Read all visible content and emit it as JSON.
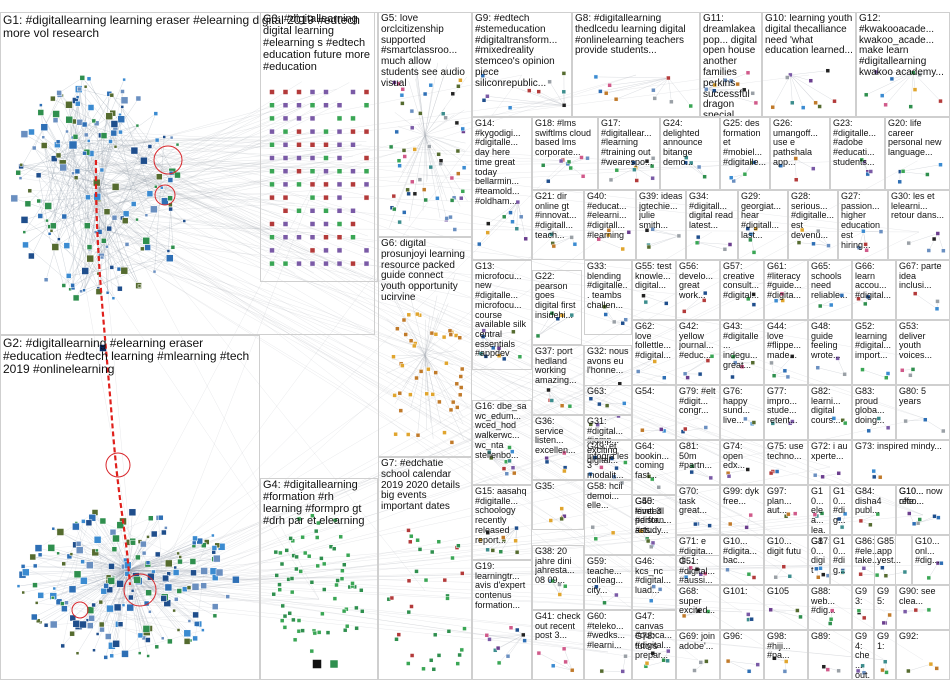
{
  "groups": [
    {
      "id": "G1",
      "label": "G1: #digitallearning learning eraser #elearning digital 2019 #edtech more vol research"
    },
    {
      "id": "G2",
      "label": "G2: #digitallearning #elearning eraser #education #edtech learning #mlearning #tech 2019 #onlinelearning"
    },
    {
      "id": "G3",
      "label": "G3: #digitallearning digital learning #elearning s #edtech education future more #education"
    },
    {
      "id": "G4",
      "label": "G4: #digitallearning #formation #rh learning #formpro gt #drh par et elearning"
    },
    {
      "id": "G5",
      "label": "G5: love orclcitizenship supported #smartclassroo... much allow students see audio visual"
    },
    {
      "id": "G6",
      "label": "G6: digital prosunjoyi learning resource packed guide connect youth opportunity ucirvine"
    },
    {
      "id": "G7",
      "label": "G7: #edchatie school calendar 2019 2020 details big events important dates"
    },
    {
      "id": "G8",
      "label": "G8: #digitallearning thedlcedu learning digital #onlinelearning teachers provide students..."
    },
    {
      "id": "G9",
      "label": "G9: #edtech #stemeducation #digitaltransform... #mixedreality stemceo's opinion piece siliconrepublic..."
    },
    {
      "id": "G10",
      "label": "G10: learning youth digital thecalliance need 'what education learned..."
    },
    {
      "id": "G11",
      "label": "G11: dreamlakeapop... digital open house another families perkins successful dragon special"
    },
    {
      "id": "G12",
      "label": "G12: #kwakooacade... kwakoo_acade... make learn #digitallearning kwakoo academy..."
    },
    {
      "id": "G13",
      "label": "G13: microfocu... new #digitalle... microfocu... course available silk central essentials #appdev"
    },
    {
      "id": "G14",
      "label": "G14: #kygodigi... #digitalle... day here time great today bellarmin... #teamold... #oldham..."
    },
    {
      "id": "G15",
      "label": "G15: aasahq #digitalle... schoology recently released report..."
    },
    {
      "id": "G16",
      "label": "G16: dbe_sa wc_edum... wced_hod walkerwc... wc_nta stellenbo..."
    },
    {
      "id": "G17",
      "label": "G17: #digitallear... #learning #training out #wearespo..."
    },
    {
      "id": "G18",
      "label": "G18: #lms swiftlms cloud based lms corporate..."
    },
    {
      "id": "G19",
      "label": "G19: learningtr... avis d'expert contenus formation..."
    },
    {
      "id": "G20",
      "label": "G20: life career personal new language..."
    },
    {
      "id": "G21",
      "label": "G21: dir online gt #innovat... #digitall... teach..."
    },
    {
      "id": "G22",
      "label": "G22: pearson goes digital first insidehi..."
    },
    {
      "id": "G23",
      "label": "G23: #digitalle... #adobe #educati... students..."
    },
    {
      "id": "G24",
      "label": "G24: delighted announce bitange demo..."
    },
    {
      "id": "G25",
      "label": "G25: des formation et #mobiel... #digitalle..."
    },
    {
      "id": "G26",
      "label": "G26: umangoff... use e pathshala app..."
    },
    {
      "id": "G27",
      "label": "G27: passion... higher educationest hiring..."
    },
    {
      "id": "G28",
      "label": "G28: serious... #digitalle... est devenu..."
    },
    {
      "id": "G29",
      "label": "G29: georgiat... hear #digitall... last..."
    },
    {
      "id": "G30",
      "label": "G30: les et lelearni... retour dans..."
    },
    {
      "id": "G31",
      "label": "G31: #digital... #jamp... exciting digital..."
    },
    {
      "id": "G32",
      "label": "G32: nous avons eu l'honne..."
    },
    {
      "id": "G33",
      "label": "G33: blending #digitalle... teambs challen..."
    },
    {
      "id": "G34",
      "label": "G34: #digitall... digital read latest..."
    },
    {
      "id": "G35",
      "label": "G35:"
    },
    {
      "id": "G36",
      "label": "G36: service listen... excellen..."
    },
    {
      "id": "G37",
      "label": "G37: port hedland working amazing..."
    },
    {
      "id": "G38",
      "label": "G38: 20 jahre dini jahresta... 08 09..."
    },
    {
      "id": "G39",
      "label": "G39: ideas jgtechie... julie smith..."
    },
    {
      "id": "G40",
      "label": "G40: #educat... #elearni... #digitall... #learning"
    },
    {
      "id": "G41",
      "label": "G41: check out recent post 3..."
    },
    {
      "id": "G42",
      "label": "G42: yellow journal... #educ..."
    },
    {
      "id": "G43",
      "label": "G43: #digitalle... indegu... great..."
    },
    {
      "id": "G44",
      "label": "G44: love #flippe... made..."
    },
    {
      "id": "G45",
      "label": "G45: #imtedl #distan... #study..."
    },
    {
      "id": "G46",
      "label": "G46: kcs_nc #digital... luad..."
    },
    {
      "id": "G47",
      "label": "G47: canvas #qubca... #digital..."
    },
    {
      "id": "G48",
      "label": "G48: guide feeling wrote..."
    },
    {
      "id": "G49",
      "label": "G49: et infogra les 3 modalit..."
    },
    {
      "id": "G50",
      "label": "G50: level 3 perfor... arts..."
    },
    {
      "id": "G51",
      "label": "G51: #digital... #aussi... digital..."
    },
    {
      "id": "G52",
      "label": "G52: learning #digital... import..."
    },
    {
      "id": "G53",
      "label": "G53: deliver youth voices..."
    },
    {
      "id": "G54",
      "label": "G54:"
    },
    {
      "id": "G55",
      "label": "G55: test knowle... digital..."
    },
    {
      "id": "G56",
      "label": "G56: develo... great work..."
    },
    {
      "id": "G57",
      "label": "G57: creative consult... #digital..."
    },
    {
      "id": "G58",
      "label": "G58: hcii demoi... elle..."
    },
    {
      "id": "G59",
      "label": "G59: teache... colleag... city..."
    },
    {
      "id": "G60",
      "label": "G60: #teleko... #wedks... #learni..."
    },
    {
      "id": "G61",
      "label": "G61: #literacy #guide... #digita..."
    },
    {
      "id": "G62",
      "label": "G62: love follettle... #digital..."
    },
    {
      "id": "G63",
      "label": "G63:"
    },
    {
      "id": "G64",
      "label": "G64: bookin... coming fast..."
    },
    {
      "id": "G65",
      "label": "G65: schools need reliable..."
    },
    {
      "id": "G66",
      "label": "G66: learn accou... #digital..."
    },
    {
      "id": "G67",
      "label": "G67: parte idea inclusi..."
    },
    {
      "id": "G68",
      "label": "G68: super excited..."
    },
    {
      "id": "G69",
      "label": "G69: join adobe'..."
    },
    {
      "id": "G70",
      "label": "G70: task great..."
    },
    {
      "id": "G71",
      "label": "G71: e #digita... di..."
    },
    {
      "id": "G72",
      "label": "G72: i au xperte..."
    },
    {
      "id": "G73",
      "label": "G73: inspired mindy..."
    },
    {
      "id": "G74",
      "label": "G74: open edx..."
    },
    {
      "id": "G75",
      "label": "G75: use techno..."
    },
    {
      "id": "G76",
      "label": "G76: happy sund... live..."
    },
    {
      "id": "G77",
      "label": "G77: impro... stude... retent..."
    },
    {
      "id": "G78",
      "label": "G78: tutors prepar..."
    },
    {
      "id": "G79",
      "label": "G79: #elt #digit... congr..."
    },
    {
      "id": "G80",
      "label": "G80: 5 years"
    },
    {
      "id": "G81",
      "label": "G81: 50m #partn..."
    },
    {
      "id": "G82",
      "label": "G82: learni... digital cours..."
    },
    {
      "id": "G83",
      "label": "G83: proud globa... doing..."
    },
    {
      "id": "G84",
      "label": "G84: disha4 publ..."
    },
    {
      "id": "G85",
      "label": "G85: app yest..."
    },
    {
      "id": "G86",
      "label": "G86: #ele... take..."
    },
    {
      "id": "G87",
      "label": "G87:"
    },
    {
      "id": "G88",
      "label": "G88: web... #dig..."
    },
    {
      "id": "G89",
      "label": "G89:"
    },
    {
      "id": "G90",
      "label": "G90: see clea..."
    },
    {
      "id": "G91",
      "label": "G91:"
    },
    {
      "id": "G92",
      "label": "G92:"
    },
    {
      "id": "G93",
      "label": "G93:"
    },
    {
      "id": "G94",
      "label": "G94: che... out..."
    },
    {
      "id": "G95",
      "label": "G95:"
    },
    {
      "id": "G96",
      "label": "G96:"
    },
    {
      "id": "G97",
      "label": "G97: plan... aut..."
    },
    {
      "id": "G98",
      "label": "G98: #hiji... #pa..."
    },
    {
      "id": "G99",
      "label": "G99: dyk free..."
    },
    {
      "id": "G100",
      "label": "G10... now offe..."
    },
    {
      "id": "G101",
      "label": "G101:"
    },
    {
      "id": "G102",
      "label": "G10... réco..."
    },
    {
      "id": "G103",
      "label": "G10... #dig..."
    },
    {
      "id": "G104",
      "label": "G10... digit futu"
    },
    {
      "id": "G105",
      "label": "G105"
    },
    {
      "id": "G106",
      "label": "G10... onl... #dig..."
    },
    {
      "id": "G107",
      "label": "G10... #digita... bac..."
    },
    {
      "id": "G108",
      "label": "G10... elea... lea..."
    },
    {
      "id": "G109",
      "label": "G10... digit"
    },
    {
      "id": "G110",
      "label": "G10... #dig..."
    }
  ]
}
